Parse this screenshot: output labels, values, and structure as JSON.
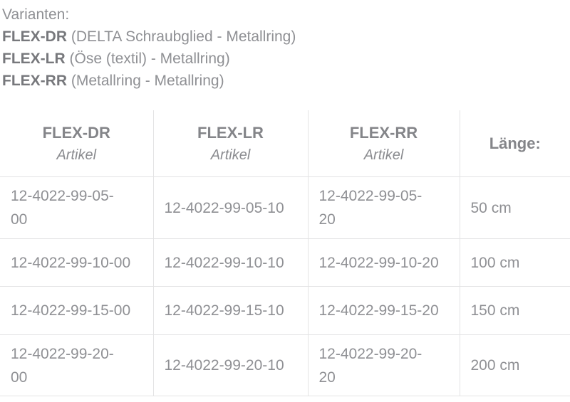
{
  "intro": {
    "title": "Varianten:",
    "variants": [
      {
        "code": "FLEX-DR",
        "description": "(DELTA Schraubglied - Metallring)"
      },
      {
        "code": "FLEX-LR",
        "description": "(Öse (textil) - Metallring)"
      },
      {
        "code": "FLEX-RR",
        "description": "(Metallring - Metallring)"
      }
    ]
  },
  "table": {
    "columns": [
      {
        "title": "FLEX-DR",
        "subtitle": "Artikel"
      },
      {
        "title": "FLEX-LR",
        "subtitle": "Artikel"
      },
      {
        "title": "FLEX-RR",
        "subtitle": "Artikel"
      },
      {
        "title": "Länge:",
        "subtitle": ""
      }
    ],
    "rows": [
      {
        "flex_dr": "12-4022-99-05-00",
        "flex_lr": "12-4022-99-05-10",
        "flex_rr": "12-4022-99-05-20",
        "length": "50 cm"
      },
      {
        "flex_dr": "12-4022-99-10-00",
        "flex_lr": "12-4022-99-10-10",
        "flex_rr": "12-4022-99-10-20",
        "length": "100 cm"
      },
      {
        "flex_dr": "12-4022-99-15-00",
        "flex_lr": "12-4022-99-15-10",
        "flex_rr": "12-4022-99-15-20",
        "length": "150 cm"
      },
      {
        "flex_dr": "12-4022-99-20-00",
        "flex_lr": "12-4022-99-20-10",
        "flex_rr": "12-4022-99-20-20",
        "length": "200 cm"
      }
    ]
  },
  "colors": {
    "body_text": "#8f9094",
    "bold_text": "#77787c",
    "header_text": "#848589",
    "border": "#e3e3e4",
    "background": "#ffffff"
  }
}
